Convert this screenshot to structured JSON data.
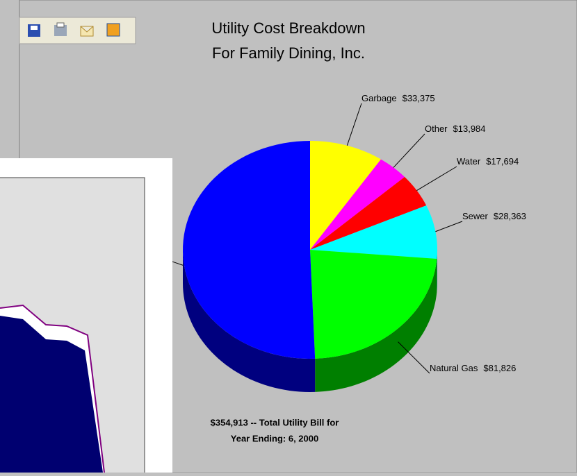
{
  "chart_data": {
    "type": "pie3d",
    "title": [
      "Utility Cost Breakdown",
      "For Family Dining, Inc."
    ],
    "categories": [
      "Garbage",
      "Other",
      "Water",
      "Sewer",
      "Natural Gas",
      null
    ],
    "values": [
      33375,
      13984,
      17694,
      28363,
      81826,
      179671
    ],
    "value_labels": [
      "$33,375",
      "$13,984",
      "$17,694",
      "$28,363",
      "$81,826",
      null
    ],
    "colors": [
      "#ffff00",
      "#ff00ff",
      "#ff0000",
      "#00ffff",
      "#00ff00",
      "#0000ff"
    ],
    "annotations": [
      "$354,913 -- Total Utility Bill for",
      "Year Ending:  6, 2000"
    ]
  }
}
